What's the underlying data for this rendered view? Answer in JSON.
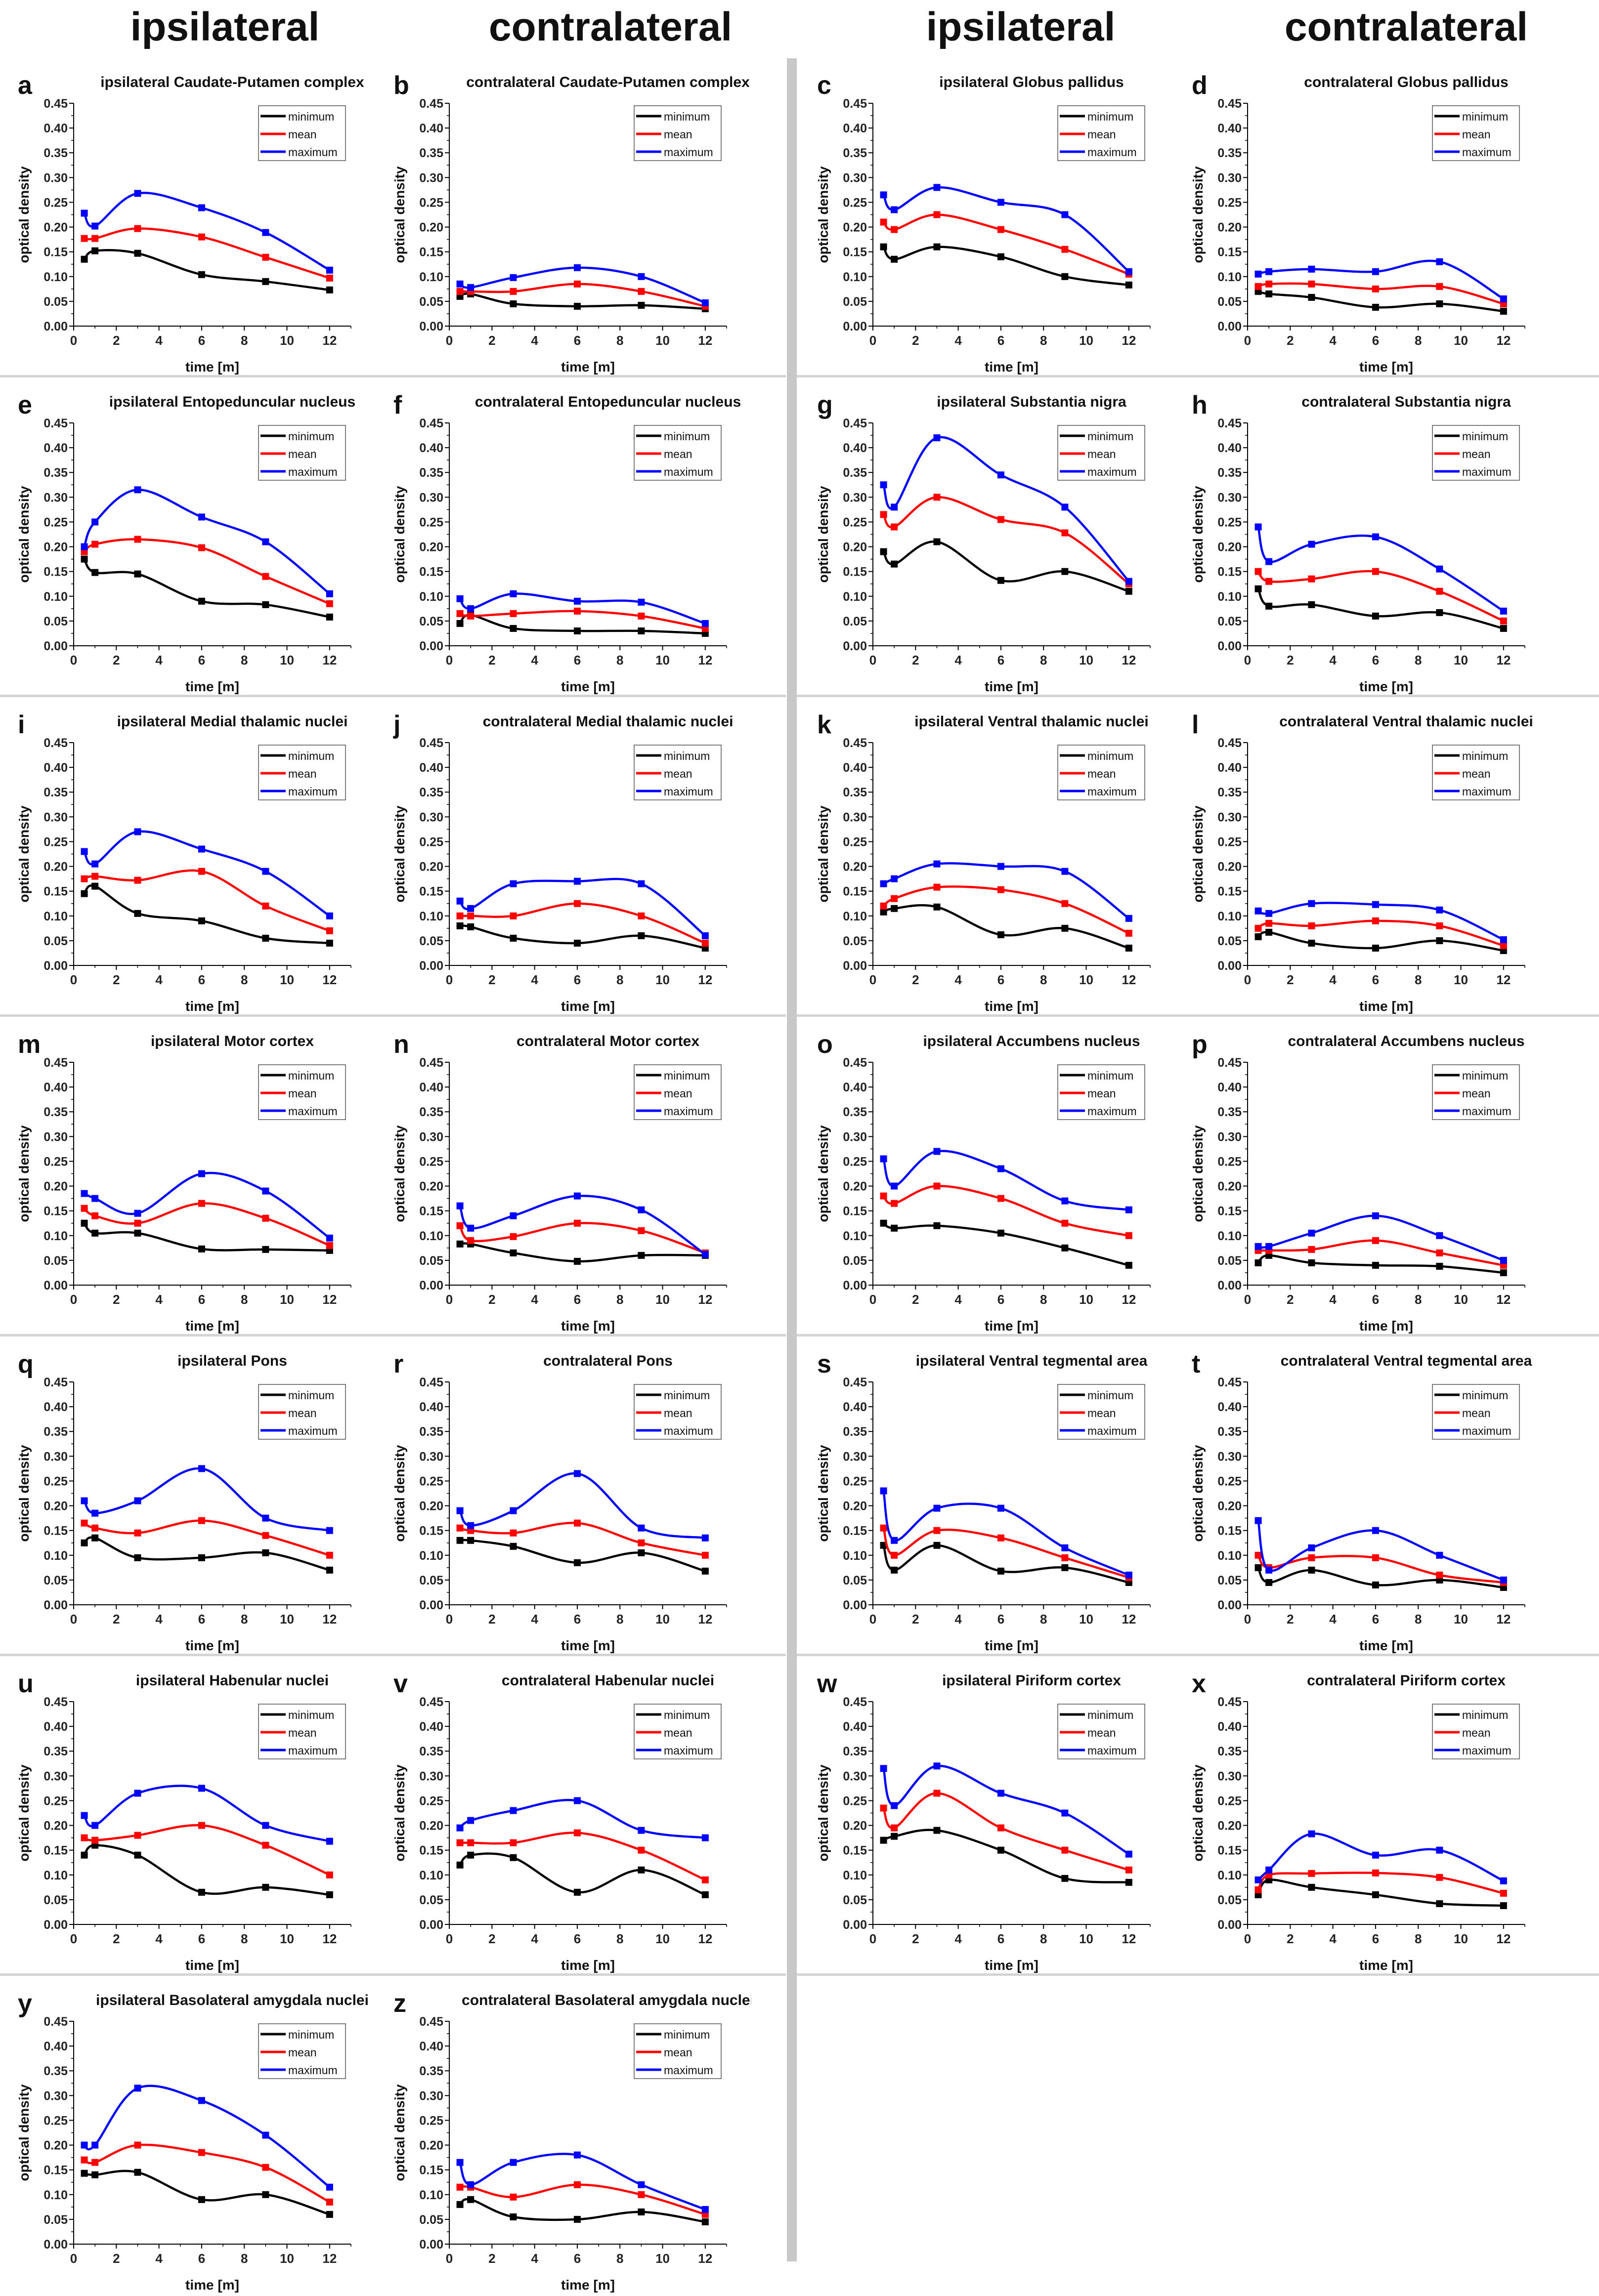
{
  "headers": [
    "ipsilateral",
    "contralateral",
    "ipsilateral",
    "contralateral"
  ],
  "colors": {
    "minimum": "#000000",
    "mean": "#ff0000",
    "maximum": "#0000ff"
  },
  "chart_data": {
    "type": "line",
    "x": [
      0.5,
      1,
      3,
      6,
      9,
      12
    ],
    "xlabel": "time [m]",
    "ylabel": "optical density",
    "xlim": [
      0,
      13
    ],
    "ylim": [
      0,
      0.45
    ],
    "xticks": [
      "0",
      "2",
      "4",
      "6",
      "8",
      "10",
      "12"
    ],
    "yticks": [
      "0.00",
      "0.05",
      "0.10",
      "0.15",
      "0.20",
      "0.25",
      "0.30",
      "0.35",
      "0.40",
      "0.45"
    ],
    "legend_position": "top-right",
    "series_names": [
      "minimum",
      "mean",
      "maximum"
    ],
    "panels": [
      {
        "letter": "a",
        "title": "ipsilateral Caudate-Putamen complex",
        "minimum": [
          0.135,
          0.152,
          0.147,
          0.104,
          0.09,
          0.073
        ],
        "mean": [
          0.177,
          0.177,
          0.197,
          0.18,
          0.139,
          0.097
        ],
        "maximum": [
          0.228,
          0.202,
          0.268,
          0.239,
          0.189,
          0.113
        ]
      },
      {
        "letter": "b",
        "title": "contralateral Caudate-Putamen complex",
        "minimum": [
          0.06,
          0.065,
          0.045,
          0.04,
          0.042,
          0.035
        ],
        "mean": [
          0.07,
          0.07,
          0.07,
          0.085,
          0.07,
          0.04
        ],
        "maximum": [
          0.085,
          0.078,
          0.098,
          0.118,
          0.1,
          0.047
        ]
      },
      {
        "letter": "c",
        "title": "ipsilateral Globus pallidus",
        "minimum": [
          0.16,
          0.135,
          0.16,
          0.14,
          0.1,
          0.083
        ],
        "mean": [
          0.21,
          0.195,
          0.225,
          0.195,
          0.155,
          0.105
        ],
        "maximum": [
          0.265,
          0.235,
          0.28,
          0.25,
          0.225,
          0.11
        ]
      },
      {
        "letter": "d",
        "title": "contralateral Globus pallidus",
        "minimum": [
          0.07,
          0.065,
          0.058,
          0.038,
          0.045,
          0.03
        ],
        "mean": [
          0.08,
          0.085,
          0.085,
          0.075,
          0.08,
          0.045
        ],
        "maximum": [
          0.105,
          0.11,
          0.115,
          0.11,
          0.13,
          0.055
        ]
      },
      {
        "letter": "e",
        "title": "ipsilateral Entopeduncular nucleus",
        "minimum": [
          0.175,
          0.148,
          0.145,
          0.09,
          0.083,
          0.058
        ],
        "mean": [
          0.19,
          0.205,
          0.215,
          0.198,
          0.14,
          0.085
        ],
        "maximum": [
          0.2,
          0.25,
          0.315,
          0.26,
          0.21,
          0.105
        ]
      },
      {
        "letter": "f",
        "title": "contralateral Entopeduncular nucleus",
        "minimum": [
          0.045,
          0.062,
          0.035,
          0.03,
          0.03,
          0.025
        ],
        "mean": [
          0.065,
          0.06,
          0.065,
          0.07,
          0.06,
          0.035
        ],
        "maximum": [
          0.095,
          0.075,
          0.105,
          0.09,
          0.088,
          0.045
        ]
      },
      {
        "letter": "g",
        "title": "ipsilateral Substantia nigra",
        "minimum": [
          0.19,
          0.165,
          0.21,
          0.132,
          0.15,
          0.11
        ],
        "mean": [
          0.265,
          0.24,
          0.3,
          0.255,
          0.228,
          0.125
        ],
        "maximum": [
          0.325,
          0.28,
          0.42,
          0.345,
          0.28,
          0.13
        ]
      },
      {
        "letter": "h",
        "title": "contralateral Substantia nigra",
        "minimum": [
          0.115,
          0.08,
          0.083,
          0.06,
          0.067,
          0.035
        ],
        "mean": [
          0.15,
          0.13,
          0.135,
          0.15,
          0.11,
          0.05
        ],
        "maximum": [
          0.24,
          0.17,
          0.205,
          0.22,
          0.155,
          0.07
        ]
      },
      {
        "letter": "i",
        "title": "ipsilateral Medial thalamic nuclei",
        "minimum": [
          0.145,
          0.16,
          0.105,
          0.09,
          0.055,
          0.045
        ],
        "mean": [
          0.175,
          0.18,
          0.172,
          0.19,
          0.12,
          0.07
        ],
        "maximum": [
          0.23,
          0.205,
          0.27,
          0.235,
          0.19,
          0.1
        ]
      },
      {
        "letter": "j",
        "title": "contralateral Medial thalamic nuclei",
        "minimum": [
          0.08,
          0.078,
          0.055,
          0.045,
          0.06,
          0.035
        ],
        "mean": [
          0.1,
          0.1,
          0.1,
          0.125,
          0.1,
          0.045
        ],
        "maximum": [
          0.13,
          0.115,
          0.165,
          0.17,
          0.165,
          0.06
        ]
      },
      {
        "letter": "k",
        "title": "ipsilateral Ventral thalamic nuclei",
        "minimum": [
          0.108,
          0.115,
          0.118,
          0.062,
          0.075,
          0.035
        ],
        "mean": [
          0.12,
          0.135,
          0.158,
          0.153,
          0.125,
          0.065
        ],
        "maximum": [
          0.165,
          0.175,
          0.205,
          0.2,
          0.19,
          0.095
        ]
      },
      {
        "letter": "l",
        "title": "contralateral Ventral thalamic nuclei",
        "minimum": [
          0.058,
          0.067,
          0.045,
          0.035,
          0.05,
          0.03
        ],
        "mean": [
          0.075,
          0.085,
          0.08,
          0.09,
          0.08,
          0.04
        ],
        "maximum": [
          0.11,
          0.105,
          0.125,
          0.123,
          0.112,
          0.052
        ]
      },
      {
        "letter": "m",
        "title": "ipsilateral Motor cortex",
        "minimum": [
          0.125,
          0.105,
          0.105,
          0.073,
          0.072,
          0.07
        ],
        "mean": [
          0.155,
          0.14,
          0.125,
          0.165,
          0.135,
          0.08
        ],
        "maximum": [
          0.185,
          0.175,
          0.145,
          0.225,
          0.19,
          0.095
        ]
      },
      {
        "letter": "n",
        "title": "contralateral Motor cortex",
        "minimum": [
          0.083,
          0.083,
          0.065,
          0.048,
          0.06,
          0.06
        ],
        "mean": [
          0.12,
          0.09,
          0.098,
          0.125,
          0.11,
          0.065
        ],
        "maximum": [
          0.16,
          0.115,
          0.14,
          0.18,
          0.152,
          0.062
        ]
      },
      {
        "letter": "o",
        "title": "ipsilateral Accumbens nucleus",
        "minimum": [
          0.125,
          0.115,
          0.12,
          0.105,
          0.075,
          0.04
        ],
        "mean": [
          0.18,
          0.165,
          0.2,
          0.175,
          0.125,
          0.1
        ],
        "maximum": [
          0.255,
          0.2,
          0.27,
          0.235,
          0.17,
          0.152
        ]
      },
      {
        "letter": "p",
        "title": "contralateral Accumbens nucleus",
        "minimum": [
          0.045,
          0.06,
          0.045,
          0.04,
          0.038,
          0.025
        ],
        "mean": [
          0.07,
          0.07,
          0.072,
          0.09,
          0.065,
          0.04
        ],
        "maximum": [
          0.078,
          0.078,
          0.105,
          0.14,
          0.1,
          0.05
        ]
      },
      {
        "letter": "q",
        "title": "ipsilateral Pons",
        "minimum": [
          0.125,
          0.135,
          0.095,
          0.095,
          0.105,
          0.07
        ],
        "mean": [
          0.165,
          0.155,
          0.145,
          0.17,
          0.14,
          0.1
        ],
        "maximum": [
          0.21,
          0.185,
          0.21,
          0.275,
          0.175,
          0.15
        ]
      },
      {
        "letter": "r",
        "title": "contralateral Pons",
        "minimum": [
          0.13,
          0.13,
          0.118,
          0.085,
          0.105,
          0.068
        ],
        "mean": [
          0.155,
          0.15,
          0.145,
          0.165,
          0.125,
          0.1
        ],
        "maximum": [
          0.19,
          0.16,
          0.19,
          0.265,
          0.155,
          0.135
        ]
      },
      {
        "letter": "s",
        "title": "ipsilateral Ventral tegmental area",
        "minimum": [
          0.12,
          0.07,
          0.12,
          0.068,
          0.075,
          0.045
        ],
        "mean": [
          0.155,
          0.1,
          0.15,
          0.135,
          0.095,
          0.055
        ],
        "maximum": [
          0.23,
          0.13,
          0.195,
          0.195,
          0.115,
          0.06
        ]
      },
      {
        "letter": "t",
        "title": "contralateral Ventral tegmental area",
        "minimum": [
          0.075,
          0.045,
          0.07,
          0.04,
          0.05,
          0.035
        ],
        "mean": [
          0.1,
          0.075,
          0.095,
          0.095,
          0.06,
          0.045
        ],
        "maximum": [
          0.17,
          0.07,
          0.115,
          0.15,
          0.1,
          0.05
        ]
      },
      {
        "letter": "u",
        "title": "ipsilateral Habenular nuclei",
        "minimum": [
          0.14,
          0.16,
          0.14,
          0.065,
          0.075,
          0.06
        ],
        "mean": [
          0.175,
          0.17,
          0.18,
          0.2,
          0.16,
          0.1
        ],
        "maximum": [
          0.22,
          0.2,
          0.265,
          0.275,
          0.2,
          0.168
        ]
      },
      {
        "letter": "v",
        "title": "contralateral Habenular nuclei",
        "minimum": [
          0.12,
          0.14,
          0.135,
          0.065,
          0.11,
          0.06
        ],
        "mean": [
          0.165,
          0.165,
          0.165,
          0.185,
          0.15,
          0.09
        ],
        "maximum": [
          0.195,
          0.21,
          0.23,
          0.25,
          0.19,
          0.175
        ]
      },
      {
        "letter": "w",
        "title": "ipsilateral Piriform cortex",
        "minimum": [
          0.17,
          0.178,
          0.19,
          0.15,
          0.093,
          0.085
        ],
        "mean": [
          0.235,
          0.195,
          0.265,
          0.195,
          0.15,
          0.11
        ],
        "maximum": [
          0.315,
          0.24,
          0.32,
          0.265,
          0.225,
          0.142
        ]
      },
      {
        "letter": "x",
        "title": "contralateral Piriform cortex",
        "minimum": [
          0.06,
          0.09,
          0.075,
          0.06,
          0.042,
          0.038
        ],
        "mean": [
          0.07,
          0.1,
          0.103,
          0.104,
          0.095,
          0.063
        ],
        "maximum": [
          0.09,
          0.11,
          0.183,
          0.14,
          0.15,
          0.088
        ]
      },
      {
        "letter": "y",
        "title": "ipsilateral Basolateral amygdala nuclei",
        "minimum": [
          0.143,
          0.14,
          0.145,
          0.09,
          0.1,
          0.06
        ],
        "mean": [
          0.17,
          0.165,
          0.2,
          0.185,
          0.155,
          0.085
        ],
        "maximum": [
          0.2,
          0.2,
          0.315,
          0.29,
          0.22,
          0.115
        ]
      },
      {
        "letter": "z",
        "title": "contralateral Basolateral amygdala nuclei",
        "minimum": [
          0.08,
          0.09,
          0.055,
          0.05,
          0.065,
          0.045
        ],
        "mean": [
          0.115,
          0.115,
          0.095,
          0.12,
          0.1,
          0.06
        ],
        "maximum": [
          0.165,
          0.12,
          0.165,
          0.18,
          0.12,
          0.07
        ]
      }
    ]
  }
}
